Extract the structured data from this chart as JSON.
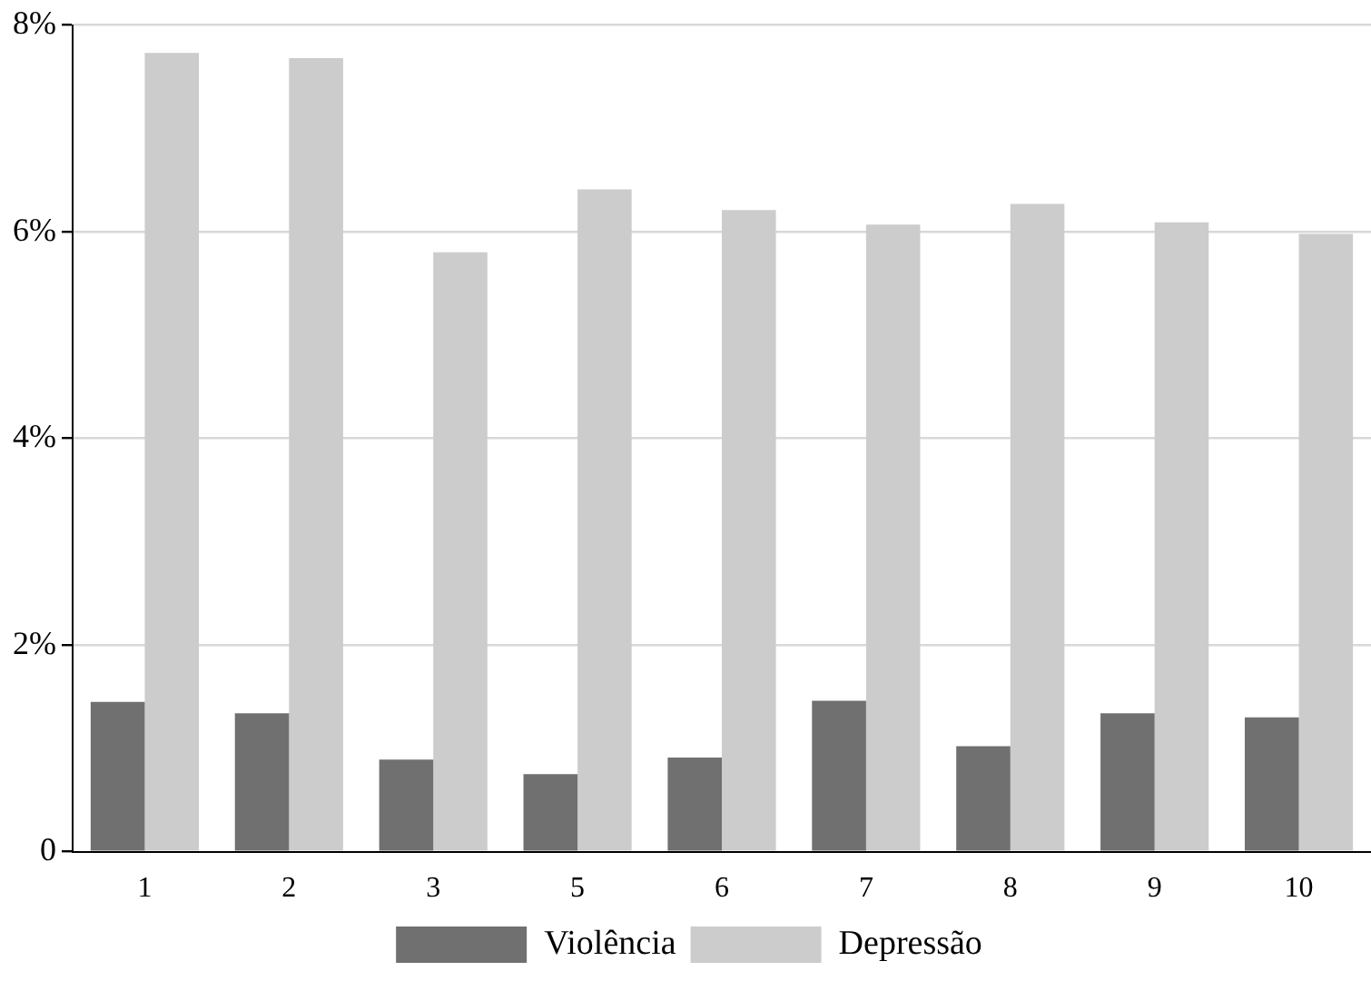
{
  "chart_data": {
    "type": "bar",
    "categories": [
      "1",
      "2",
      "3",
      "5",
      "6",
      "7",
      "8",
      "9",
      "10"
    ],
    "series": [
      {
        "name": "Violência",
        "color": "#707070",
        "values": [
          1.45,
          1.34,
          0.89,
          0.75,
          0.91,
          1.46,
          1.02,
          1.34,
          1.3
        ]
      },
      {
        "name": "Depressão",
        "color": "#cccccc",
        "values": [
          7.73,
          7.68,
          5.8,
          6.41,
          6.21,
          6.07,
          6.27,
          6.09,
          5.98
        ]
      }
    ],
    "ylim": [
      0,
      8
    ],
    "yticks": [
      0,
      {
        "value": 2,
        "label": "2%"
      },
      {
        "value": 4,
        "label": "4%"
      },
      {
        "value": 6,
        "label": "6%"
      },
      {
        "value": 8,
        "label": "8%"
      }
    ],
    "grid": "y",
    "legend": "bottom"
  }
}
